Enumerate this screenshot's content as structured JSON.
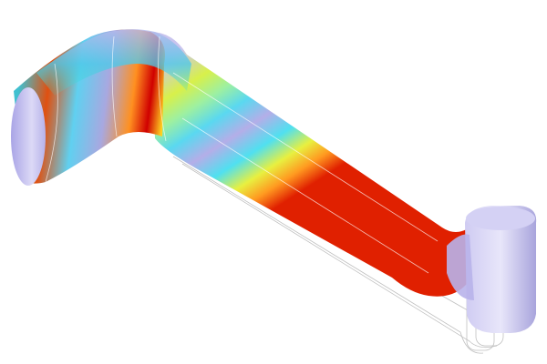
{
  "scene": {
    "background": "#ffffff",
    "object": "bent-pipe-surface-plot",
    "colormap": [
      "#0000a0",
      "#3070ff",
      "#30e0ff",
      "#a0ffa0",
      "#ffff00",
      "#ff8000",
      "#d00000"
    ],
    "end_cap_color": "#c8c4f0",
    "wireframe_color": "#b8b8b8"
  }
}
